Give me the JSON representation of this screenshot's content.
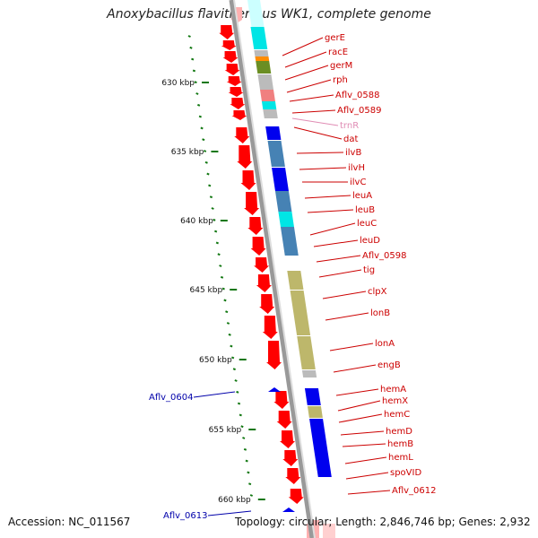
{
  "title": "Anoxybacillus flavithermus WK1, complete genome",
  "footer": {
    "accession": "Accession: NC_011567",
    "topology": "Topology: circular; Length: 2,846,746 bp; Genes: 2,932"
  },
  "colors": {
    "backbone": "#999999",
    "forward_gene": "#ff0000",
    "label_right": "#cc0000",
    "label_trna": "#e08cb4",
    "label_left": "#0000aa",
    "tick": "#117711",
    "cog_cyan": "#00e5e5",
    "cog_blue": "#0000ee",
    "cog_steel": "#4682b4",
    "cog_khaki": "#bdb76b",
    "cog_olive": "#6b8e23",
    "cog_orange": "#ff8c00",
    "cog_pink": "#f08080",
    "cog_grey": "#bbbbbb"
  },
  "kbp_labels": [
    "630 kbp",
    "635 kbp",
    "640 kbp",
    "645 kbp",
    "650 kbp",
    "655 kbp",
    "660 kbp"
  ],
  "right_genes": [
    {
      "name": "gerE",
      "type": "gene"
    },
    {
      "name": "racE",
      "type": "gene"
    },
    {
      "name": "gerM",
      "type": "gene"
    },
    {
      "name": "rph",
      "type": "gene"
    },
    {
      "name": "Aflv_0588",
      "type": "gene"
    },
    {
      "name": "Aflv_0589",
      "type": "gene"
    },
    {
      "name": "trnR",
      "type": "trna"
    },
    {
      "name": "dat",
      "type": "gene"
    },
    {
      "name": "ilvB",
      "type": "gene"
    },
    {
      "name": "ilvH",
      "type": "gene"
    },
    {
      "name": "ilvC",
      "type": "gene"
    },
    {
      "name": "leuA",
      "type": "gene"
    },
    {
      "name": "leuB",
      "type": "gene"
    },
    {
      "name": "leuC",
      "type": "gene"
    },
    {
      "name": "leuD",
      "type": "gene"
    },
    {
      "name": "Aflv_0598",
      "type": "gene"
    },
    {
      "name": "tig",
      "type": "gene"
    },
    {
      "name": "clpX",
      "type": "gene"
    },
    {
      "name": "lonB",
      "type": "gene"
    },
    {
      "name": "lonA",
      "type": "gene"
    },
    {
      "name": "engB",
      "type": "gene"
    },
    {
      "name": "hemA",
      "type": "gene"
    },
    {
      "name": "hemX",
      "type": "gene"
    },
    {
      "name": "hemC",
      "type": "gene"
    },
    {
      "name": "hemD",
      "type": "gene"
    },
    {
      "name": "hemB",
      "type": "gene"
    },
    {
      "name": "hemL",
      "type": "gene"
    },
    {
      "name": "spoVID",
      "type": "gene"
    },
    {
      "name": "Aflv_0612",
      "type": "gene"
    }
  ],
  "left_genes": [
    {
      "name": "Aflv_0604"
    },
    {
      "name": "Aflv_0613"
    }
  ]
}
